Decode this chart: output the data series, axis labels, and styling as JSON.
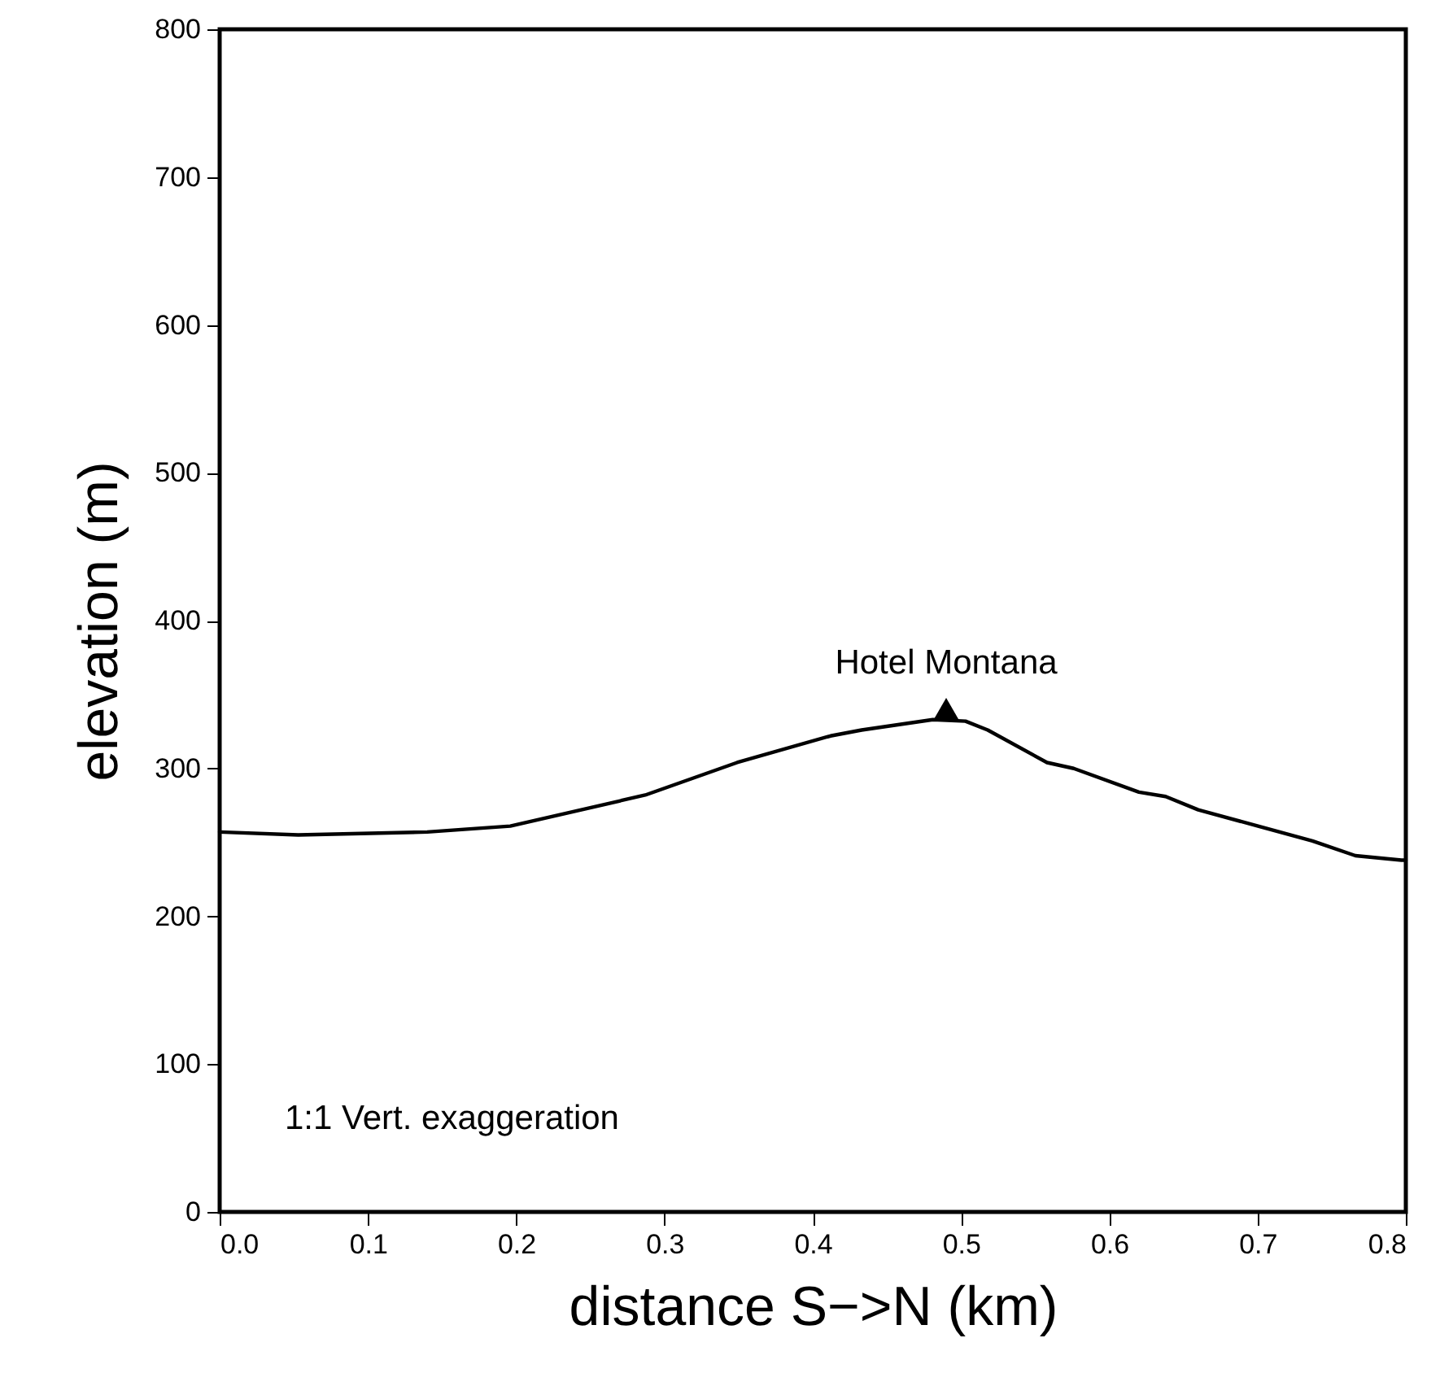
{
  "chart_data": {
    "type": "line",
    "xlabel": "distance S−>N (km)",
    "ylabel": "elevation (m)",
    "x": [
      0,
      0.053,
      0.14,
      0.196,
      0.287,
      0.349,
      0.412,
      0.433,
      0.481,
      0.503,
      0.518,
      0.558,
      0.576,
      0.62,
      0.638,
      0.66,
      0.737,
      0.766,
      0.797,
      0.8
    ],
    "series": [
      {
        "color": "#000000",
        "values": [
          257,
          255,
          257,
          261,
          282,
          304,
          322,
          326,
          333,
          332,
          326,
          304,
          300,
          284,
          281,
          272,
          251,
          241,
          238,
          238
        ]
      },
      {
        "type": "scatter",
        "marker": "triangle",
        "color": "#000000",
        "x": [
          0.49
        ],
        "values": [
          340
        ]
      }
    ],
    "xlim": [
      0,
      0.8
    ],
    "xticks": [
      {
        "value": 0,
        "label": "0.0"
      },
      0.1,
      0.2,
      0.3,
      0.4,
      0.5,
      0.6,
      0.7,
      0.8
    ],
    "ylim": [
      0,
      800
    ],
    "yticks": [
      0,
      100,
      200,
      300,
      400,
      500,
      600,
      700,
      800
    ],
    "grid": false,
    "marker": "none",
    "line_style": "solid",
    "annotations": [
      {
        "text": "Hotel Montana",
        "x": 0.49,
        "y": 340
      },
      "1:1 Vert. exaggeration"
    ]
  }
}
